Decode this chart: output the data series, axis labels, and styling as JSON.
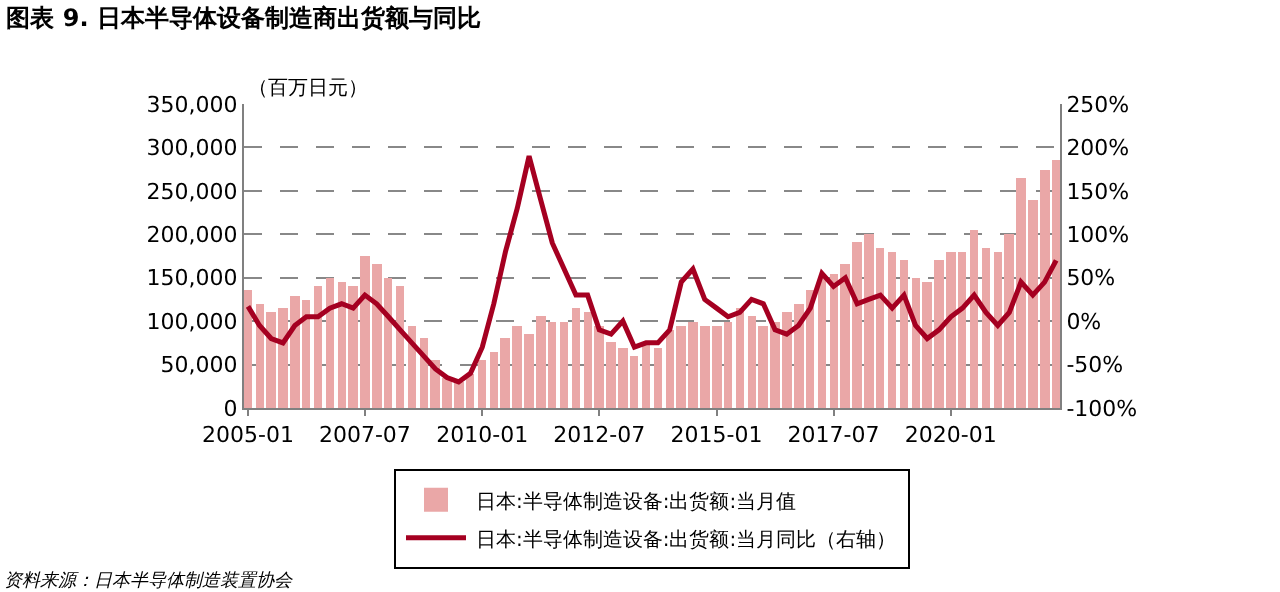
{
  "chart_data": {
    "type": "bar",
    "title": "图表 9. 日本半导体设备制造商出货额与同比",
    "ylabel": "（百万日元）",
    "x": [
      "2005-01",
      "2005-04",
      "2005-07",
      "2005-10",
      "2006-01",
      "2006-04",
      "2006-07",
      "2006-10",
      "2007-01",
      "2007-04",
      "2007-07",
      "2007-10",
      "2008-01",
      "2008-04",
      "2008-07",
      "2008-10",
      "2009-01",
      "2009-04",
      "2009-07",
      "2009-10",
      "2010-01",
      "2010-04",
      "2010-07",
      "2010-10",
      "2011-01",
      "2011-04",
      "2011-07",
      "2011-10",
      "2012-01",
      "2012-04",
      "2012-07",
      "2012-10",
      "2013-01",
      "2013-04",
      "2013-07",
      "2013-10",
      "2014-01",
      "2014-04",
      "2014-07",
      "2014-10",
      "2015-01",
      "2015-04",
      "2015-07",
      "2015-10",
      "2016-01",
      "2016-04",
      "2016-07",
      "2016-10",
      "2017-01",
      "2017-04",
      "2017-07",
      "2017-10",
      "2018-01",
      "2018-04",
      "2018-07",
      "2018-10",
      "2019-01",
      "2019-04",
      "2019-07",
      "2019-10",
      "2020-01",
      "2020-04",
      "2020-07",
      "2020-10",
      "2021-01",
      "2021-04",
      "2021-07",
      "2021-10",
      "2022-01",
      "2022-04"
    ],
    "series": [
      {
        "name": "日本:半导体制造设备:出货额:当月值",
        "color": "#eaa7a7",
        "values": [
          135000,
          120000,
          110000,
          115000,
          130000,
          125000,
          140000,
          150000,
          145000,
          140000,
          175000,
          165000,
          150000,
          140000,
          95000,
          80000,
          55000,
          35000,
          30000,
          40000,
          55000,
          65000,
          80000,
          95000,
          85000,
          105000,
          100000,
          100000,
          115000,
          110000,
          95000,
          75000,
          70000,
          60000,
          75000,
          70000,
          90000,
          95000,
          100000,
          95000,
          95000,
          100000,
          115000,
          105000,
          95000,
          100000,
          110000,
          120000,
          135000,
          150000,
          155000,
          165000,
          190000,
          200000,
          185000,
          180000,
          170000,
          150000,
          145000,
          170000,
          180000,
          180000,
          205000,
          185000,
          180000,
          200000,
          265000,
          240000,
          275000,
          285000
        ]
      },
      {
        "name": "日本:半导体制造设备:出货额:当月同比（右轴）",
        "type": "line",
        "axis": "y2",
        "color": "#a50021",
        "values": [
          17,
          -5,
          -20,
          -25,
          -5,
          5,
          5,
          15,
          20,
          15,
          30,
          20,
          5,
          -10,
          -25,
          -40,
          -55,
          -65,
          -70,
          -60,
          -30,
          20,
          80,
          130,
          190,
          140,
          90,
          60,
          30,
          30,
          -10,
          -15,
          0,
          -30,
          -25,
          -25,
          -10,
          45,
          60,
          25,
          15,
          5,
          10,
          25,
          20,
          -10,
          -15,
          -5,
          15,
          55,
          40,
          50,
          20,
          25,
          30,
          15,
          30,
          -5,
          -20,
          -10,
          5,
          15,
          30,
          10,
          -5,
          10,
          45,
          30,
          45,
          70
        ]
      }
    ],
    "xlim": [
      "2004-12",
      "2022-05"
    ],
    "xticks": [
      "2005-01",
      "2007-07",
      "2010-01",
      "2012-07",
      "2015-01",
      "2017-07",
      "2020-01"
    ],
    "ylim": [
      0,
      350000
    ],
    "yticks": [
      0,
      {
        "value": 50000,
        "label": "50,000"
      },
      {
        "value": 100000,
        "label": "100,000"
      },
      {
        "value": 150000,
        "label": "150,000"
      },
      {
        "value": 200000,
        "label": "200,000"
      },
      {
        "value": 250000,
        "label": "250,000"
      },
      {
        "value": 300000,
        "label": "300,000"
      },
      {
        "value": 350000,
        "label": "350,000"
      }
    ],
    "y2lim": [
      -100,
      250
    ],
    "y2ticks": [
      {
        "value": -100,
        "label": "-100%"
      },
      {
        "value": -50,
        "label": "-50%"
      },
      {
        "value": 0,
        "label": "0%"
      },
      {
        "value": 50,
        "label": "50%"
      },
      {
        "value": 100,
        "label": "100%"
      },
      {
        "value": 150,
        "label": "150%"
      },
      {
        "value": 200,
        "label": "200%"
      },
      {
        "value": 250,
        "label": "250%"
      }
    ],
    "grid": "y",
    "legend": "bottom",
    "annotations": [
      "资料来源：日本半导体制造装置协会"
    ]
  }
}
